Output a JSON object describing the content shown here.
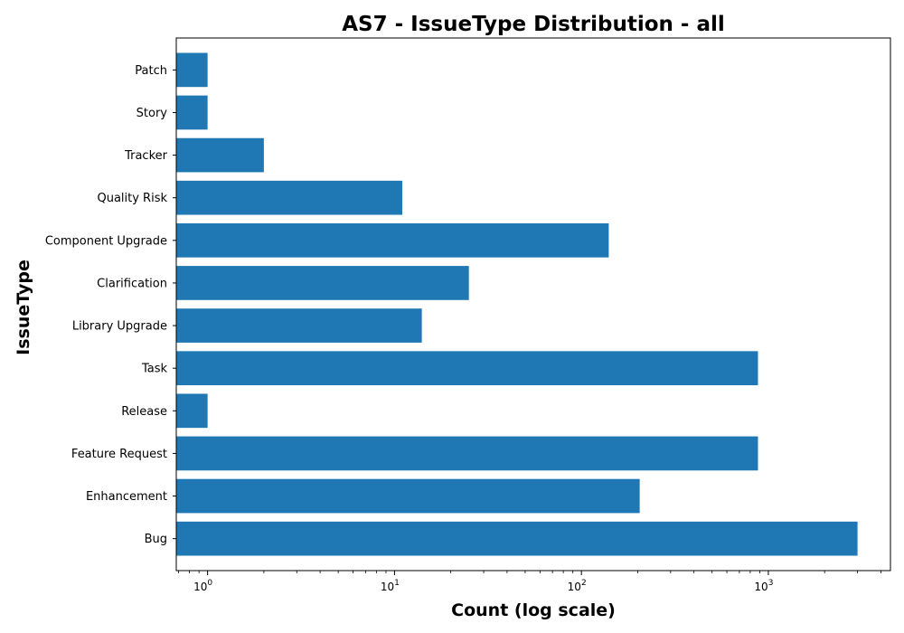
{
  "chart_data": {
    "type": "bar",
    "orientation": "horizontal",
    "title": "AS7 - IssueType Distribution - all",
    "xlabel": "Count (log scale)",
    "ylabel": "IssueType",
    "x_scale": "log",
    "xlim": [
      0.68,
      4500
    ],
    "x_ticks": [
      {
        "value": 1,
        "base": "10",
        "exp": "0"
      },
      {
        "value": 10,
        "base": "10",
        "exp": "1"
      },
      {
        "value": 100,
        "base": "10",
        "exp": "2"
      },
      {
        "value": 1000,
        "base": "10",
        "exp": "3"
      }
    ],
    "categories": [
      "Bug",
      "Enhancement",
      "Feature Request",
      "Release",
      "Task",
      "Library Upgrade",
      "Clarification",
      "Component Upgrade",
      "Quality Risk",
      "Tracker",
      "Story",
      "Patch"
    ],
    "values": [
      3000,
      205,
      880,
      1,
      880,
      14,
      25,
      140,
      11,
      2,
      1,
      1
    ],
    "bar_color": "#1f77b4",
    "grid": false,
    "legend": "none"
  }
}
